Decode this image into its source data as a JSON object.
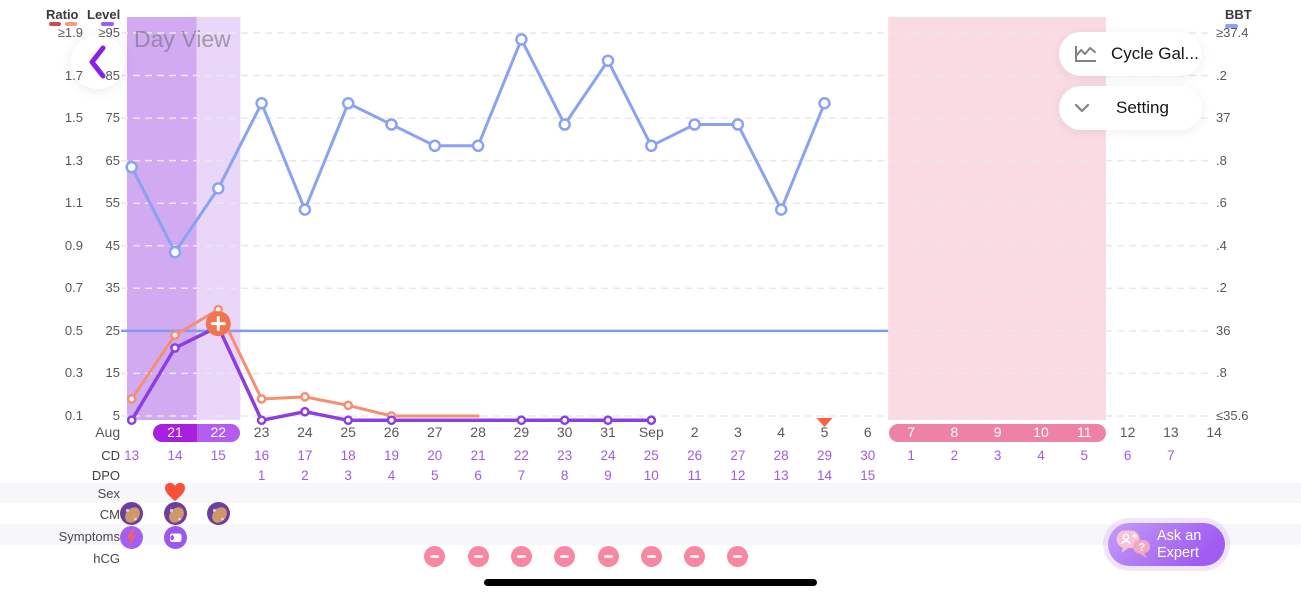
{
  "header": {
    "day_view": "Day View",
    "cycle_gallery": "Cycle Gal...",
    "setting": "Setting"
  },
  "legend": {
    "ratio_label": "Ratio",
    "level_label": "Level",
    "bbt_label": "BBT",
    "ratio_dash1_color": "#c9504e",
    "ratio_dash2_color": "#f59a86",
    "level_dash_color": "#a05df0",
    "bbt_dash_color": "#8ba3f0"
  },
  "axes": {
    "ratio_ticks": [
      "≥1.9",
      "1.7",
      "1.5",
      "1.3",
      "1.1",
      "0.9",
      "0.7",
      "0.5",
      "0.3",
      "0.1"
    ],
    "level_ticks": [
      "≥95",
      "85",
      "75",
      "65",
      "55",
      "45",
      "35",
      "25",
      "15",
      "5"
    ],
    "bbt_ticks": [
      "≥37.4",
      ".2",
      "37",
      ".8",
      ".6",
      ".4",
      ".2",
      "36",
      ".8",
      "≤35.6"
    ]
  },
  "x_axis": {
    "date_labels": [
      "Aug",
      "21",
      "22",
      "23",
      "24",
      "25",
      "26",
      "27",
      "28",
      "29",
      "30",
      "31",
      "Sep",
      "2",
      "3",
      "4",
      "5",
      "6",
      "7",
      "8",
      "9",
      "10",
      "11",
      "12",
      "13",
      "14"
    ],
    "highlight_purple_indices": [
      1,
      2
    ],
    "highlight_pink_indices": [
      18,
      19,
      20,
      21,
      22
    ],
    "cd_label": "CD",
    "cd_values": [
      "13",
      "14",
      "15",
      "16",
      "17",
      "18",
      "19",
      "20",
      "21",
      "22",
      "23",
      "24",
      "25",
      "26",
      "27",
      "28",
      "29",
      "30",
      "1",
      "2",
      "3",
      "4",
      "5",
      "6",
      "7",
      ""
    ],
    "dpo_label": "DPO",
    "dpo_values": [
      "",
      "",
      "",
      "1",
      "2",
      "3",
      "4",
      "5",
      "6",
      "7",
      "8",
      "9",
      "10",
      "11",
      "12",
      "13",
      "14",
      "15",
      "",
      "",
      "",
      "",
      "",
      "",
      "",
      ""
    ]
  },
  "chart_data": {
    "type": "line",
    "x_dates": [
      "Aug 20",
      "Aug 21",
      "Aug 22",
      "Aug 23",
      "Aug 24",
      "Aug 25",
      "Aug 26",
      "Aug 27",
      "Aug 28",
      "Aug 29",
      "Aug 30",
      "Aug 31",
      "Sep 1",
      "Sep 2",
      "Sep 3",
      "Sep 4",
      "Sep 5",
      "Sep 6",
      "Sep 7",
      "Sep 8",
      "Sep 9",
      "Sep 10",
      "Sep 11",
      "Sep 12",
      "Sep 13",
      "Sep 14"
    ],
    "axis_ranges": {
      "ratio": [
        0.1,
        1.9
      ],
      "level": [
        5,
        95
      ],
      "bbt": [
        35.6,
        37.4
      ]
    },
    "series": [
      {
        "name": "BBT",
        "axis": "bbt",
        "color": "#8aa2f2",
        "start_index": 0,
        "dot_r": 5,
        "width": 3,
        "values": [
          36.77,
          36.37,
          36.67,
          37.07,
          36.57,
          37.07,
          36.97,
          36.87,
          36.87,
          37.37,
          36.97,
          37.27,
          36.87,
          36.97,
          36.97,
          36.57,
          37.07
        ]
      },
      {
        "name": "Ratio",
        "axis": "ratio",
        "color": "#f78e74",
        "start_index": 0,
        "dot_r": 3.6,
        "width": 3,
        "no_dot_indices": [
          7,
          8
        ],
        "values": [
          0.18,
          0.48,
          0.6,
          0.18,
          0.19,
          0.15,
          0.1,
          0.1,
          0.1
        ]
      },
      {
        "name": "Level",
        "axis": "level",
        "color": "#8c3fe0",
        "start_index": 0,
        "dot_r": 3.6,
        "width": 3.5,
        "no_dot_indices": [
          7,
          8
        ],
        "values": [
          4,
          21,
          26,
          4,
          6,
          4,
          4,
          4,
          4,
          4,
          4,
          4,
          4
        ]
      }
    ],
    "coverline": {
      "axis": "bbt",
      "value": 36.0,
      "color": "#8599ee"
    },
    "highlight_regions": [
      {
        "name": "fertile-window-dark",
        "from_col": -0.11,
        "to_col": 1.5,
        "color": "#d2aaf1"
      },
      {
        "name": "fertile-window-light",
        "from_col": 1.5,
        "to_col": 2.51,
        "color": "#e9d6f9"
      },
      {
        "name": "period-prediction-region",
        "from_col": 17.47,
        "to_col": 22.5,
        "color": "#fbdbe2"
      }
    ],
    "markers": [
      {
        "type": "plus-badge",
        "index": 2,
        "axis": "ratio",
        "value": 0.6,
        "offset_y": 14,
        "color": "#f3734f"
      },
      {
        "type": "triangle-down",
        "index": 16,
        "y": 418,
        "color": "#fb6240"
      }
    ],
    "date_pills": {
      "purple": {
        "from_col": 0.5,
        "to_col": 2.5,
        "colors": [
          "#a81fe0",
          "#b45ced"
        ]
      },
      "pink": {
        "from_col": 17.5,
        "to_col": 22.5,
        "color": "#ee82a6"
      }
    }
  },
  "rows": {
    "sex": {
      "label": "Sex",
      "markers": [
        {
          "index": 1,
          "icon": "heart-icon",
          "color": "#fa4f38"
        }
      ]
    },
    "cm": {
      "label": "CM",
      "markers": [
        {
          "index": 0,
          "icon": "cm-fingers-icon"
        },
        {
          "index": 1,
          "icon": "cm-fingers-icon"
        },
        {
          "index": 2,
          "icon": "cm-fingers-icon"
        }
      ]
    },
    "symptoms": {
      "label": "Symptoms",
      "markers": [
        {
          "index": 0,
          "icon": "cramps-lightning-icon"
        },
        {
          "index": 1,
          "icon": "spotting-tissue-icon"
        }
      ]
    },
    "hcg": {
      "label": "hCG",
      "marker_indices": [
        7,
        8,
        9,
        10,
        11,
        12,
        13,
        14
      ],
      "icon": "minus-circle-icon",
      "color": "#f888a2"
    }
  },
  "ask_expert": {
    "line1": "Ask an",
    "line2": "Expert"
  }
}
